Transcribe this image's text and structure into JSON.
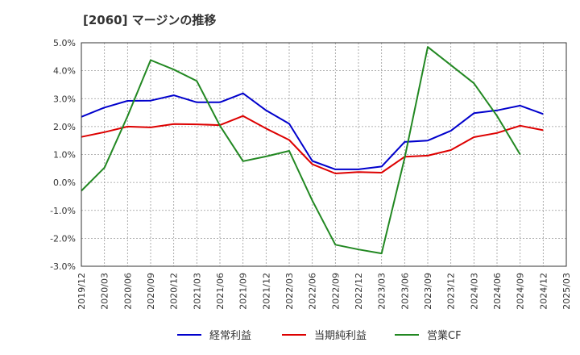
{
  "chart_data": {
    "type": "line",
    "title": "[2060]  マージンの推移",
    "xlabel": "",
    "ylabel": "",
    "categories": [
      "2019/12",
      "2020/03",
      "2020/06",
      "2020/09",
      "2020/12",
      "2021/03",
      "2021/06",
      "2021/09",
      "2021/12",
      "2022/03",
      "2022/06",
      "2022/09",
      "2022/12",
      "2023/03",
      "2023/06",
      "2023/09",
      "2023/12",
      "2024/03",
      "2024/06",
      "2024/09",
      "2024/12",
      "2025/03"
    ],
    "y_ticks": [
      "5.0%",
      "4.0%",
      "3.0%",
      "2.0%",
      "1.0%",
      "0.0%",
      "-1.0%",
      "-2.0%",
      "-3.0%"
    ],
    "ylim": [
      -3.0,
      5.0
    ],
    "grid": true,
    "legend_position": "bottom",
    "series": [
      {
        "name": "経常利益",
        "color": "#0000cc",
        "values": [
          2.35,
          2.68,
          2.92,
          2.93,
          3.12,
          2.87,
          2.87,
          3.19,
          2.58,
          2.1,
          0.77,
          0.47,
          0.47,
          0.57,
          1.45,
          1.5,
          1.85,
          2.48,
          2.58,
          2.75,
          2.45,
          null
        ]
      },
      {
        "name": "当期純利益",
        "color": "#dd0000",
        "values": [
          1.63,
          1.8,
          2.0,
          1.97,
          2.09,
          2.08,
          2.05,
          2.38,
          1.93,
          1.52,
          0.65,
          0.32,
          0.37,
          0.35,
          0.92,
          0.96,
          1.16,
          1.62,
          1.77,
          2.03,
          1.87,
          null
        ]
      },
      {
        "name": "営業CF",
        "color": "#228822",
        "values": [
          -0.3,
          0.53,
          2.37,
          4.38,
          4.04,
          3.63,
          2.03,
          0.76,
          0.93,
          1.13,
          -0.65,
          -2.23,
          -2.4,
          -2.54,
          0.87,
          4.85,
          4.2,
          3.55,
          2.38,
          1.0,
          null,
          null
        ]
      }
    ]
  }
}
